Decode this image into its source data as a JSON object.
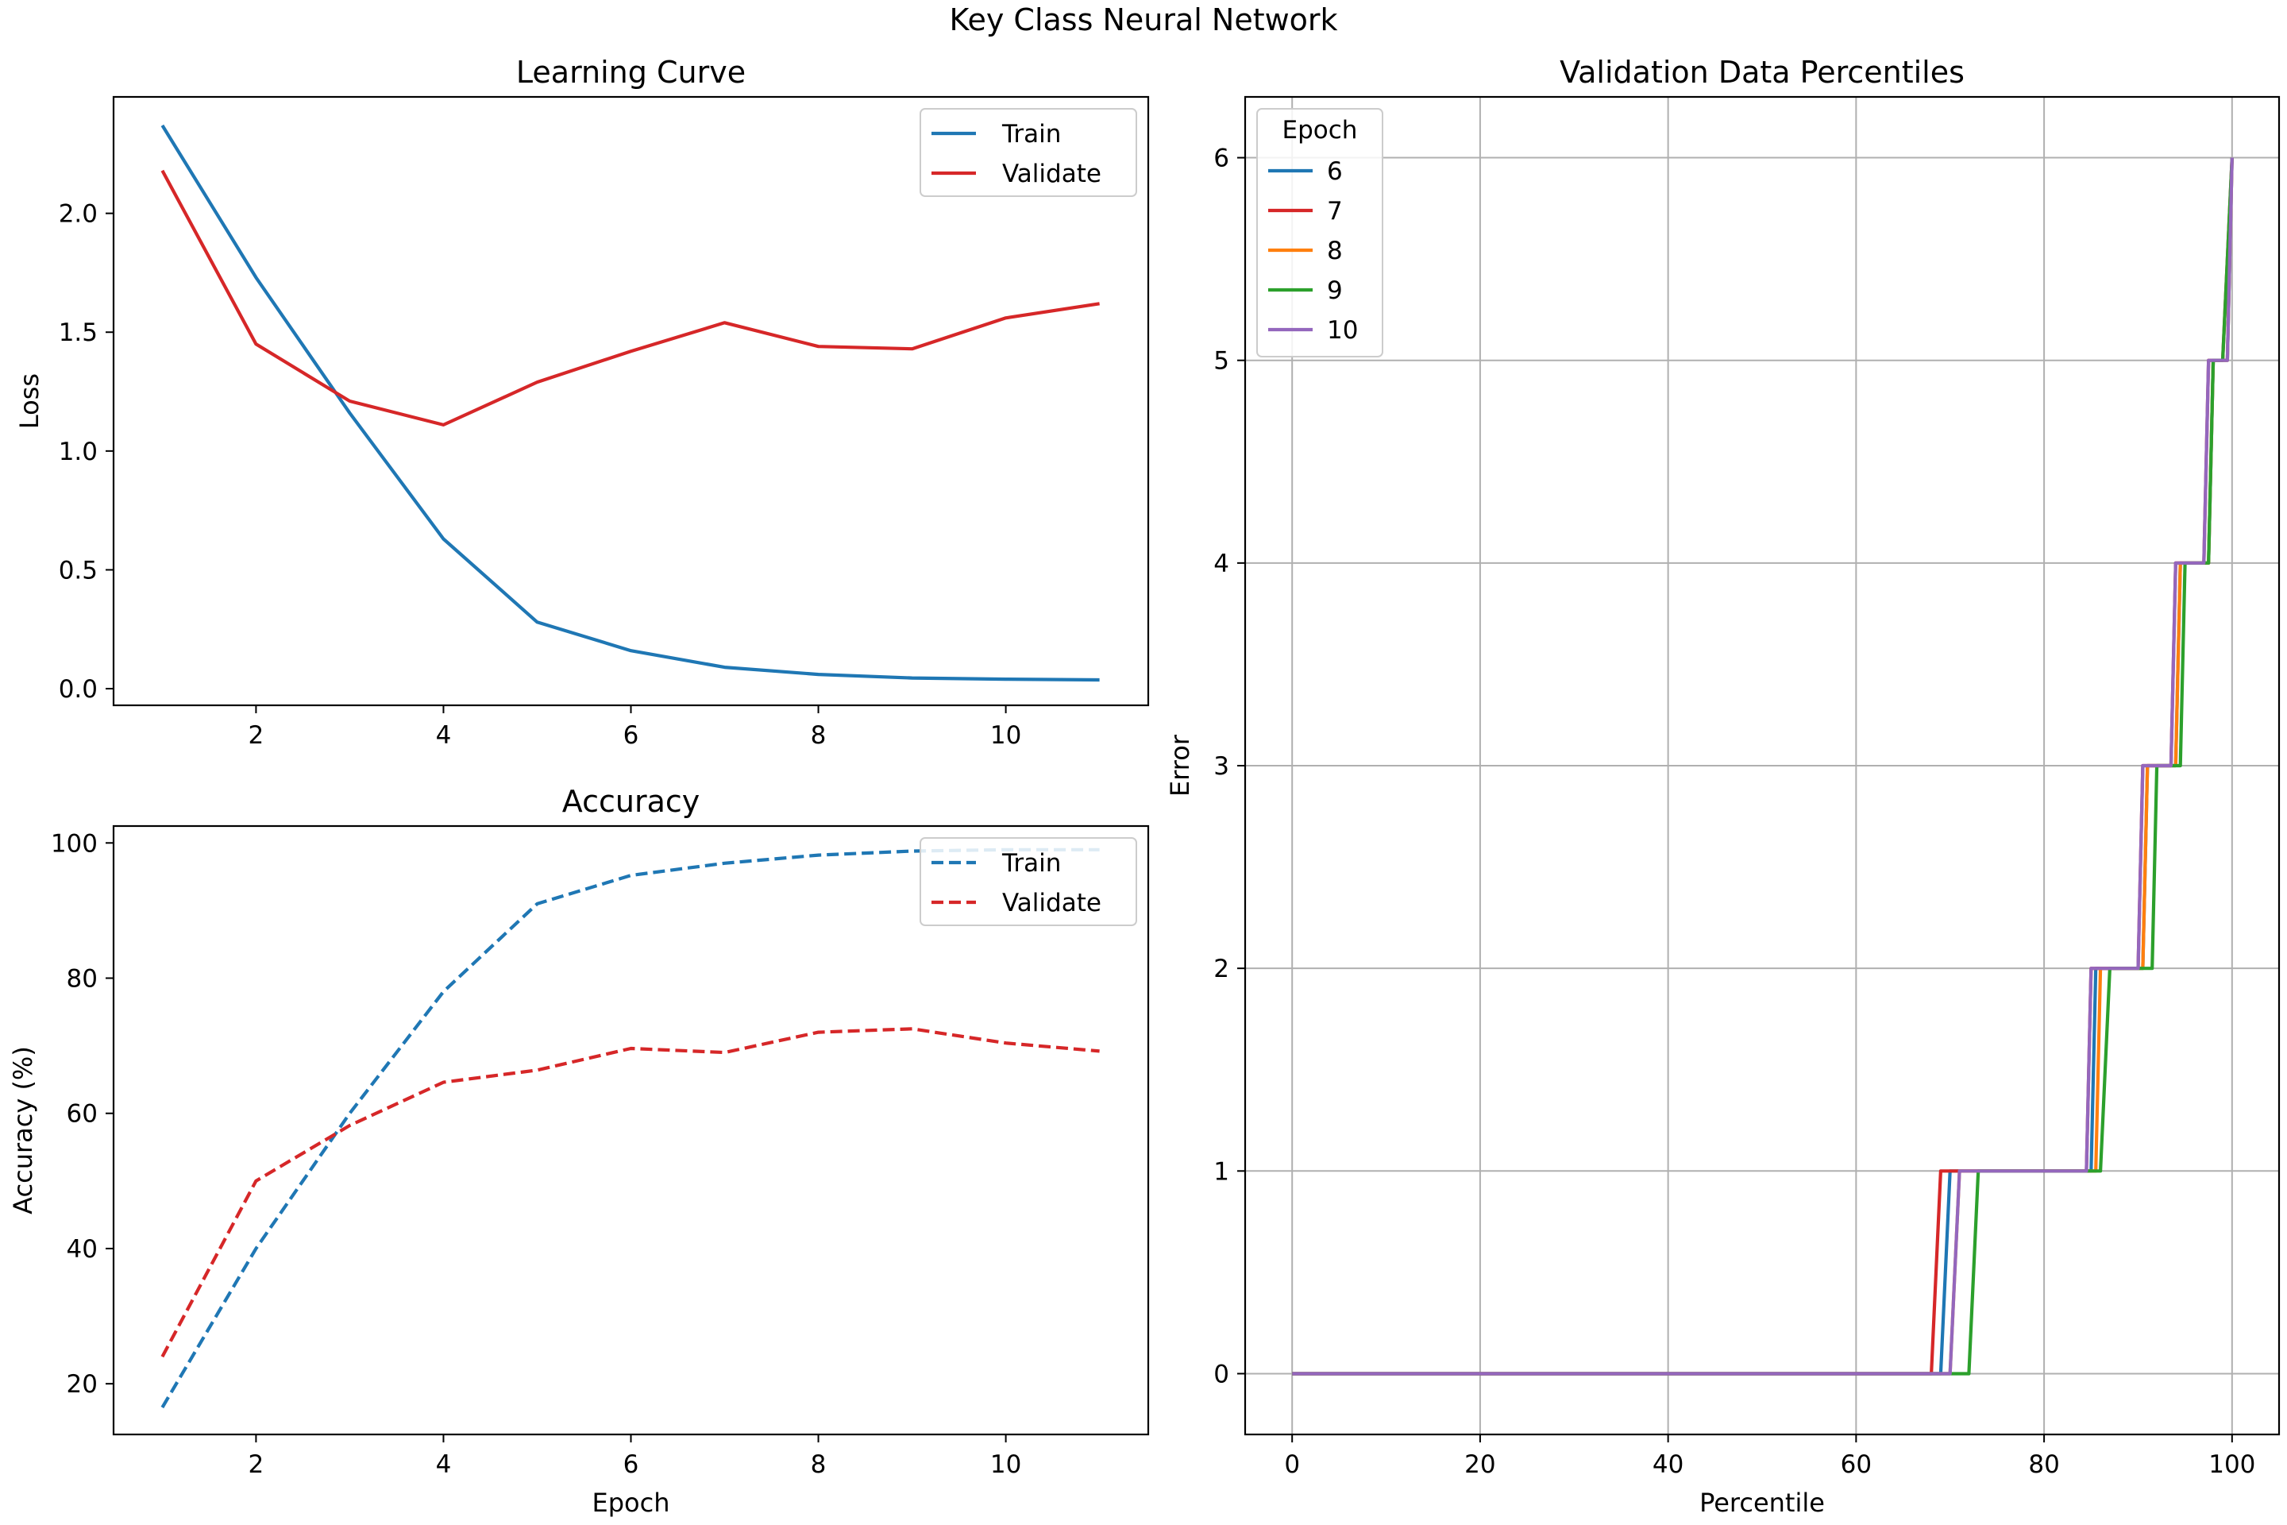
{
  "suptitle": "Key Class Neural Network",
  "colors": {
    "blue": "#1f77b4",
    "red": "#d62728",
    "orange": "#ff7f0e",
    "green": "#2ca02c",
    "purple": "#9467bd"
  },
  "chart_data": [
    {
      "id": "loss",
      "type": "line",
      "title": "Learning Curve",
      "xlabel": "",
      "ylabel": "Loss",
      "xlim": [
        0.48,
        11.52
      ],
      "ylim": [
        -0.07,
        2.49
      ],
      "xticks": [
        2,
        4,
        6,
        8,
        10
      ],
      "yticks": [
        0.0,
        0.5,
        1.0,
        1.5,
        2.0
      ],
      "ytick_labels": [
        "0.0",
        "0.5",
        "1.0",
        "1.5",
        "2.0"
      ],
      "grid": false,
      "legend_position": "top-right",
      "x": [
        1,
        2,
        3,
        4,
        5,
        6,
        7,
        8,
        9,
        10,
        11
      ],
      "series": [
        {
          "name": "Train",
          "color": "blue",
          "dash": "solid",
          "values": [
            2.37,
            1.73,
            1.16,
            0.63,
            0.28,
            0.16,
            0.09,
            0.06,
            0.045,
            0.04,
            0.037
          ]
        },
        {
          "name": "Validate",
          "color": "red",
          "dash": "solid",
          "values": [
            2.18,
            1.45,
            1.21,
            1.11,
            1.29,
            1.42,
            1.54,
            1.44,
            1.43,
            1.56,
            1.62
          ]
        }
      ]
    },
    {
      "id": "acc",
      "type": "line",
      "title": "Accuracy",
      "xlabel": "Epoch",
      "ylabel": "Accuracy (%)",
      "xlim": [
        0.48,
        11.52
      ],
      "ylim": [
        12.5,
        102.5
      ],
      "xticks": [
        2,
        4,
        6,
        8,
        10
      ],
      "yticks": [
        20,
        40,
        60,
        80,
        100
      ],
      "ytick_labels": [
        "20",
        "40",
        "60",
        "80",
        "100"
      ],
      "grid": false,
      "legend_position": "top-right",
      "x": [
        1,
        2,
        3,
        4,
        5,
        6,
        7,
        8,
        9,
        10,
        11
      ],
      "series": [
        {
          "name": "Train",
          "color": "blue",
          "dash": "dashed",
          "values": [
            16.5,
            40.0,
            60.0,
            78.0,
            91.0,
            95.2,
            97.0,
            98.2,
            98.8,
            99.0,
            99.0
          ]
        },
        {
          "name": "Validate",
          "color": "red",
          "dash": "dashed",
          "values": [
            24.0,
            50.0,
            58.2,
            64.6,
            66.4,
            69.6,
            69.0,
            72.0,
            72.5,
            70.4,
            69.2
          ]
        }
      ]
    },
    {
      "id": "pct",
      "type": "line",
      "title": "Validation Data Percentiles",
      "xlabel": "Percentile",
      "ylabel": "Error",
      "xlim": [
        -5,
        105
      ],
      "ylim": [
        -0.3,
        6.3
      ],
      "xticks": [
        0,
        20,
        40,
        60,
        80,
        100
      ],
      "yticks": [
        0,
        1,
        2,
        3,
        4,
        5,
        6
      ],
      "ytick_labels": [
        "0",
        "1",
        "2",
        "3",
        "4",
        "5",
        "6"
      ],
      "grid": true,
      "legend_title": "Epoch",
      "legend_position": "top-left",
      "series": [
        {
          "name": "6",
          "color": "blue",
          "x": [
            0,
            69,
            70,
            85,
            85.5,
            90.5,
            91,
            94,
            94.5,
            97.5,
            98,
            99.5,
            100
          ],
          "y": [
            0,
            0,
            1,
            1,
            2,
            2,
            3,
            3,
            4,
            4,
            5,
            5,
            6
          ]
        },
        {
          "name": "7",
          "color": "red",
          "x": [
            0,
            68,
            69,
            84.5,
            85,
            90,
            90.5,
            93.5,
            94,
            97,
            97.5,
            99,
            100
          ],
          "y": [
            0,
            0,
            1,
            1,
            2,
            2,
            3,
            3,
            4,
            4,
            5,
            5,
            6
          ]
        },
        {
          "name": "8",
          "color": "orange",
          "x": [
            0,
            70,
            71,
            85.5,
            86,
            90.5,
            91,
            94,
            94.5,
            97.5,
            98,
            99.5,
            100
          ],
          "y": [
            0,
            0,
            1,
            1,
            2,
            2,
            3,
            3,
            4,
            4,
            5,
            5,
            6
          ]
        },
        {
          "name": "9",
          "color": "green",
          "x": [
            0,
            72,
            73,
            86,
            87,
            91.5,
            92,
            94.5,
            95,
            97.5,
            98,
            99,
            100
          ],
          "y": [
            0,
            0,
            1,
            1,
            2,
            2,
            3,
            3,
            4,
            4,
            5,
            5,
            6
          ]
        },
        {
          "name": "10",
          "color": "purple",
          "x": [
            0,
            70,
            71,
            84.5,
            85,
            90,
            90.5,
            93.5,
            94,
            97,
            97.5,
            99.5,
            100
          ],
          "y": [
            0,
            0,
            1,
            1,
            2,
            2,
            3,
            3,
            4,
            4,
            5,
            5,
            6
          ]
        }
      ]
    }
  ]
}
